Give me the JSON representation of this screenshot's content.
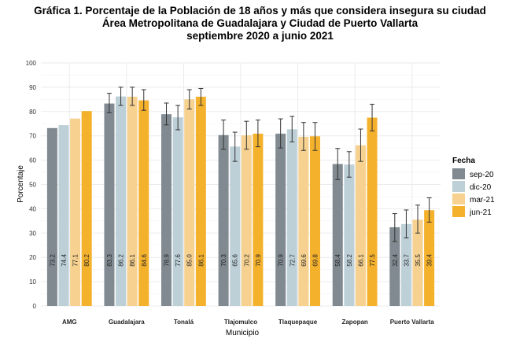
{
  "title": {
    "line1": "Gráfica 1. Porcentaje de la Población de 18 años y más que considera insegura su ciudad",
    "line2": "Área Metropolitana de Guadalajara y Ciudad de Puerto Vallarta",
    "line3": "septiembre 2020 a junio 2021"
  },
  "colors": {
    "sep-20": "#808a90",
    "dic-20": "#bdd0d8",
    "mar-21": "#f6d18f",
    "jun-21": "#f4b12c",
    "grid": "#ebebeb",
    "errorbar": "#333333"
  },
  "chart_data": {
    "type": "bar",
    "title": "Gráfica 1. Porcentaje de la Población de 18 años y más que considera insegura su ciudad Área Metropolitana de Guadalajara y Ciudad de Puerto Vallarta septiembre 2020 a junio 2021",
    "xlabel": "Municipio",
    "ylabel": "Porcentaje",
    "ylim": [
      0,
      100
    ],
    "yticks": [
      0,
      10,
      20,
      30,
      40,
      50,
      60,
      70,
      80,
      90,
      100
    ],
    "grid": true,
    "legend_title": "Fecha",
    "legend_position": "right",
    "categories": [
      "AMG",
      "Guadalajara",
      "Tonalá",
      "Tlajomulco",
      "Tlaquepaque",
      "Zapopan",
      "Puerto Vallarta"
    ],
    "series": [
      {
        "name": "sep-20",
        "values": [
          73.2,
          83.3,
          78.9,
          70.3,
          70.9,
          58.4,
          32.4
        ],
        "err_low": [
          null,
          79.5,
          74.5,
          64.5,
          65.0,
          52.0,
          26.5
        ],
        "err_high": [
          null,
          87.5,
          83.5,
          76.5,
          77.0,
          64.8,
          38.0
        ]
      },
      {
        "name": "dic-20",
        "values": [
          74.4,
          86.2,
          77.6,
          65.6,
          72.7,
          58.2,
          33.7
        ],
        "err_low": [
          null,
          82.5,
          72.5,
          59.5,
          67.5,
          53.0,
          28.0
        ],
        "err_high": [
          null,
          90.0,
          82.5,
          71.5,
          78.0,
          63.5,
          39.5
        ]
      },
      {
        "name": "mar-21",
        "values": [
          77.1,
          86.1,
          85.0,
          70.2,
          69.6,
          66.1,
          35.5
        ],
        "err_low": [
          null,
          82.5,
          81.0,
          64.5,
          64.0,
          59.5,
          30.0
        ],
        "err_high": [
          null,
          90.0,
          89.0,
          76.0,
          75.5,
          72.8,
          41.5
        ]
      },
      {
        "name": "jun-21",
        "values": [
          80.2,
          84.6,
          86.1,
          70.9,
          69.8,
          77.5,
          39.4
        ],
        "err_low": [
          null,
          80.5,
          82.5,
          65.5,
          64.0,
          72.0,
          34.5
        ],
        "err_high": [
          null,
          89.0,
          89.5,
          76.5,
          75.5,
          83.0,
          44.5
        ]
      }
    ]
  }
}
